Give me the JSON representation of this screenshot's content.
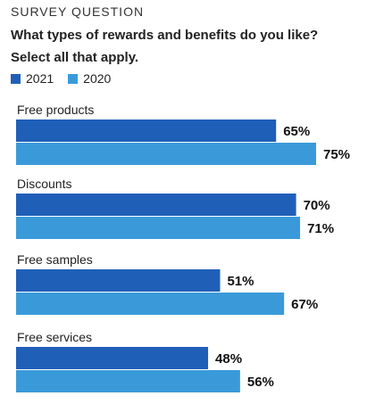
{
  "header": {
    "kicker": "SURVEY QUESTION",
    "question": "What types of rewards and benefits do you like? Select all that apply."
  },
  "legend": [
    {
      "label": "2021",
      "color": "#1f5fb8"
    },
    {
      "label": "2020",
      "color": "#3a9ad9"
    }
  ],
  "chart_data": {
    "type": "bar",
    "orientation": "horizontal",
    "categories": [
      "Free products",
      "Discounts",
      "Free samples",
      "Free services"
    ],
    "series": [
      {
        "name": "2021",
        "color": "#1f5fb8",
        "values": [
          65,
          70,
          51,
          48
        ],
        "labels": [
          "65%",
          "70%",
          "51%",
          "48%"
        ]
      },
      {
        "name": "2020",
        "color": "#3a9ad9",
        "values": [
          75,
          71,
          67,
          56
        ],
        "labels": [
          "75%",
          "71%",
          "67%",
          "56%"
        ]
      }
    ],
    "xlim": [
      0,
      100
    ],
    "legend_position": "top-left",
    "grid": false
  }
}
